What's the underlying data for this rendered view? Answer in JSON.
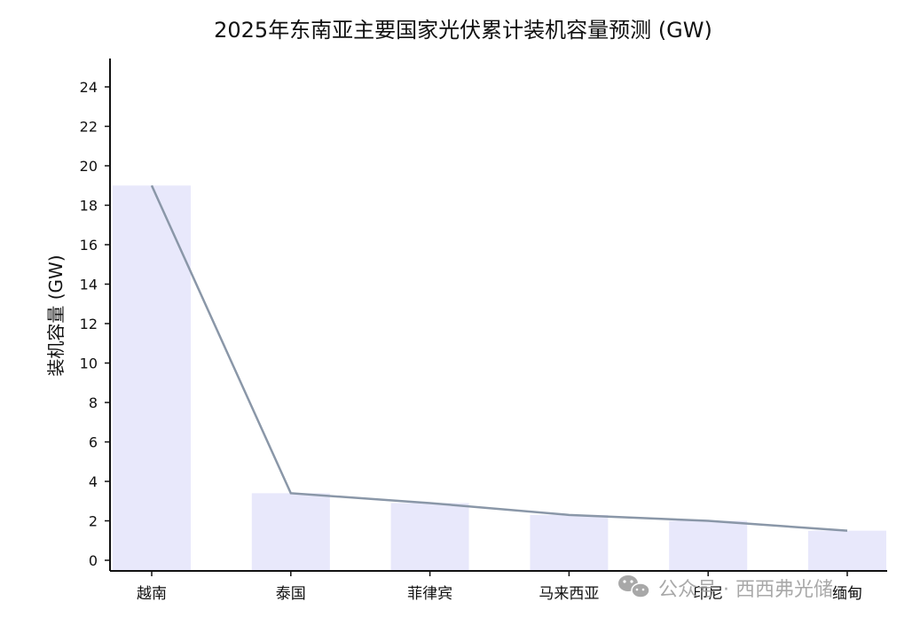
{
  "chart_data": {
    "type": "bar",
    "title": "2025年东南亚主要国家光伏累计装机容量预测 (GW)",
    "xlabel": "",
    "ylabel": "装机容量 (GW)",
    "categories": [
      "越南",
      "泰国",
      "菲律宾",
      "马来西亚",
      "印尼",
      "缅甸"
    ],
    "values": [
      19.0,
      3.4,
      2.9,
      2.3,
      2.0,
      1.5
    ],
    "overlay_line": true,
    "ylim": [
      0,
      25
    ],
    "yticks": [
      0,
      2,
      4,
      6,
      8,
      10,
      12,
      14,
      16,
      18,
      20,
      22,
      24
    ],
    "grid": false,
    "colors": {
      "bar": "#e8e8fb",
      "line": "#8a97a8",
      "axis": "#111111"
    }
  },
  "watermark": {
    "icon": "wechat-icon",
    "text": "公众号 · 西西弗光储"
  }
}
